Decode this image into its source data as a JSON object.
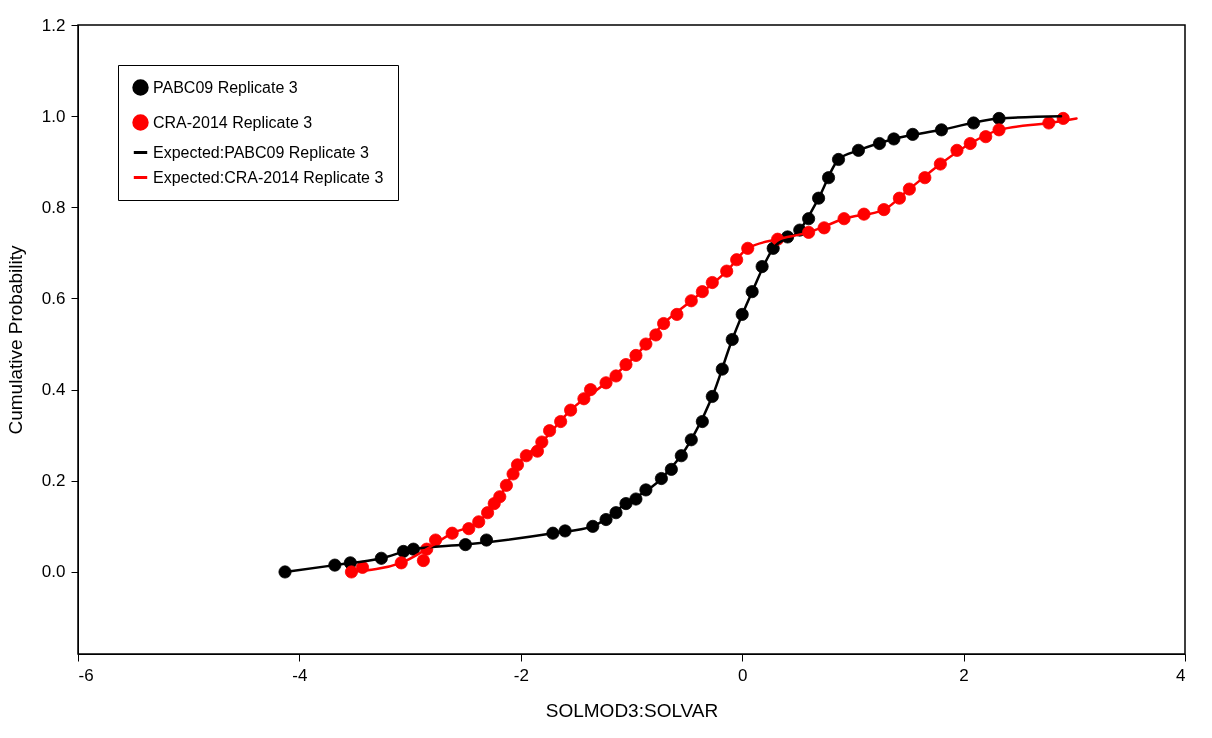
{
  "chart_data": {
    "type": "scatter",
    "xlabel": "SOLMOD3:SOLVAR",
    "ylabel": "Cumulative Probability",
    "xlim": [
      -6,
      4
    ],
    "xticks": [
      -6,
      -4,
      -2,
      0,
      2,
      4
    ],
    "ylim": [
      -0.18,
      1.2
    ],
    "yticks": [
      {
        "value": 0,
        "label": "0.0"
      },
      {
        "value": 0.2,
        "label": "0.2"
      },
      {
        "value": 0.4,
        "label": "0.4"
      },
      {
        "value": 0.6,
        "label": "0.6"
      },
      {
        "value": 0.8,
        "label": "0.8"
      },
      {
        "value": 1,
        "label": "1.0"
      },
      {
        "value": 1.2,
        "label": "1.2"
      }
    ],
    "grid": false,
    "legend": "top left",
    "series": [
      {
        "name": "PABC09 Replicate 3",
        "marker": "circle",
        "color": "#000000",
        "x": [
          -4.13,
          -3.68,
          -3.54,
          -3.26,
          -3.06,
          -2.97,
          -2.5,
          -2.31,
          -1.71,
          -1.6,
          -1.35,
          -1.23,
          -1.14,
          -1.05,
          -0.96,
          -0.87,
          -0.73,
          -0.64,
          -0.55,
          -0.46,
          -0.36,
          -0.27,
          -0.18,
          -0.09,
          0.0,
          0.09,
          0.18,
          0.28,
          0.41,
          0.52,
          0.6,
          0.69,
          0.78,
          0.87,
          1.05,
          1.24,
          1.37,
          1.54,
          1.8,
          2.09,
          2.32
        ],
        "values": [
          0.0,
          0.015,
          0.02,
          0.03,
          0.045,
          0.05,
          0.06,
          0.07,
          0.085,
          0.09,
          0.1,
          0.115,
          0.13,
          0.15,
          0.16,
          0.18,
          0.205,
          0.225,
          0.255,
          0.29,
          0.33,
          0.385,
          0.445,
          0.51,
          0.565,
          0.615,
          0.67,
          0.71,
          0.735,
          0.75,
          0.775,
          0.82,
          0.865,
          0.905,
          0.925,
          0.94,
          0.95,
          0.96,
          0.97,
          0.985,
          0.995
        ]
      },
      {
        "name": "CRA-2014 Replicate 3",
        "marker": "circle",
        "color": "#ff0000",
        "x": [
          -3.53,
          -3.43,
          -3.08,
          -2.88,
          -2.85,
          -2.77,
          -2.62,
          -2.47,
          -2.38,
          -2.3,
          -2.24,
          -2.19,
          -2.13,
          -2.07,
          -2.03,
          -1.95,
          -1.85,
          -1.81,
          -1.74,
          -1.64,
          -1.55,
          -1.43,
          -1.37,
          -1.23,
          -1.14,
          -1.05,
          -0.96,
          -0.87,
          -0.78,
          -0.71,
          -0.59,
          -0.46,
          -0.36,
          -0.27,
          -0.14,
          -0.05,
          0.05,
          0.32,
          0.6,
          0.74,
          0.92,
          1.1,
          1.28,
          1.42,
          1.51,
          1.65,
          1.79,
          1.94,
          2.06,
          2.2,
          2.32,
          2.77,
          2.9
        ],
        "values": [
          0.0,
          0.01,
          0.02,
          0.025,
          0.05,
          0.07,
          0.085,
          0.095,
          0.11,
          0.13,
          0.15,
          0.165,
          0.19,
          0.215,
          0.235,
          0.255,
          0.265,
          0.285,
          0.31,
          0.33,
          0.355,
          0.38,
          0.4,
          0.415,
          0.43,
          0.455,
          0.475,
          0.5,
          0.52,
          0.545,
          0.565,
          0.595,
          0.615,
          0.635,
          0.66,
          0.685,
          0.71,
          0.73,
          0.745,
          0.755,
          0.775,
          0.785,
          0.795,
          0.82,
          0.84,
          0.865,
          0.895,
          0.925,
          0.94,
          0.955,
          0.97,
          0.985,
          0.995
        ]
      },
      {
        "name": "Expected:PABC09 Replicate 3",
        "type": "line",
        "line_style": "solid",
        "color": "#000000",
        "x": [
          -4.13,
          -3.68,
          -3.26,
          -2.97,
          -2.5,
          -1.71,
          -1.35,
          -1.05,
          -0.73,
          -0.46,
          -0.27,
          -0.09,
          0.09,
          0.28,
          0.52,
          0.69,
          0.87,
          1.05,
          1.37,
          1.8,
          2.32,
          2.88
        ],
        "values": [
          0.0,
          0.015,
          0.03,
          0.05,
          0.06,
          0.085,
          0.1,
          0.15,
          0.205,
          0.29,
          0.385,
          0.51,
          0.615,
          0.71,
          0.75,
          0.82,
          0.905,
          0.925,
          0.95,
          0.97,
          0.995,
          1.0
        ]
      },
      {
        "name": "Expected:CRA-2014 Replicate 3",
        "type": "line",
        "line_style": "solid",
        "color": "#ff0000",
        "x": [
          -3.53,
          -3.08,
          -2.85,
          -2.62,
          -2.38,
          -2.19,
          -2.03,
          -1.81,
          -1.55,
          -1.23,
          -0.96,
          -0.71,
          -0.46,
          -0.14,
          0.05,
          0.32,
          0.6,
          0.92,
          1.28,
          1.51,
          1.79,
          2.06,
          2.32,
          2.77,
          3.02
        ],
        "values": [
          0.0,
          0.02,
          0.05,
          0.085,
          0.11,
          0.165,
          0.235,
          0.285,
          0.355,
          0.415,
          0.475,
          0.545,
          0.595,
          0.66,
          0.71,
          0.73,
          0.745,
          0.775,
          0.795,
          0.84,
          0.895,
          0.94,
          0.97,
          0.985,
          0.995
        ]
      }
    ]
  }
}
